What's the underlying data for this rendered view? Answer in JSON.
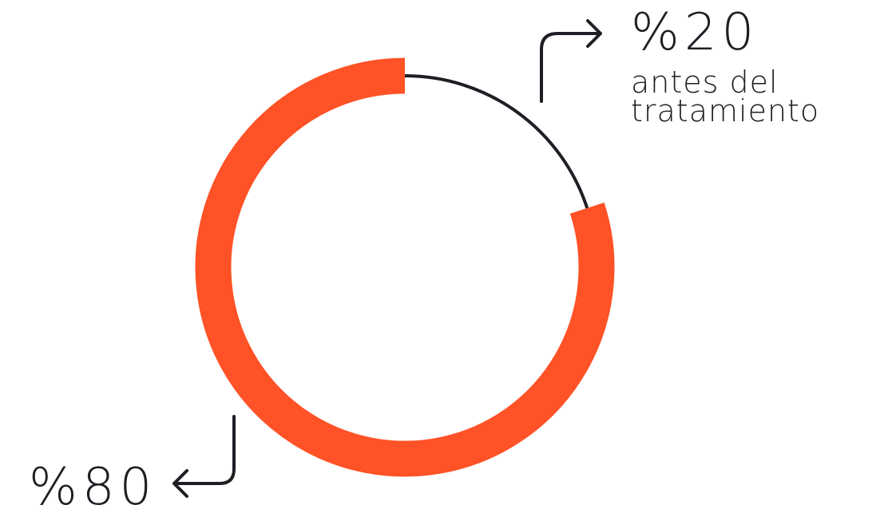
{
  "chart_data": {
    "type": "pie",
    "style": "donut",
    "categories": [
      "%20 antes del tratamiento",
      "%80"
    ],
    "values": [
      20,
      80
    ],
    "colors": [
      "#1d1f24",
      "#ff5226"
    ],
    "annotations": [
      {
        "value_label": "%20",
        "text_lines": [
          "antes del",
          "tratamiento"
        ],
        "arrow_direction": "right",
        "color": "#1d1f24"
      },
      {
        "value_label": "%80",
        "text_lines": [],
        "arrow_direction": "left",
        "color": "#1d1f24"
      }
    ]
  }
}
